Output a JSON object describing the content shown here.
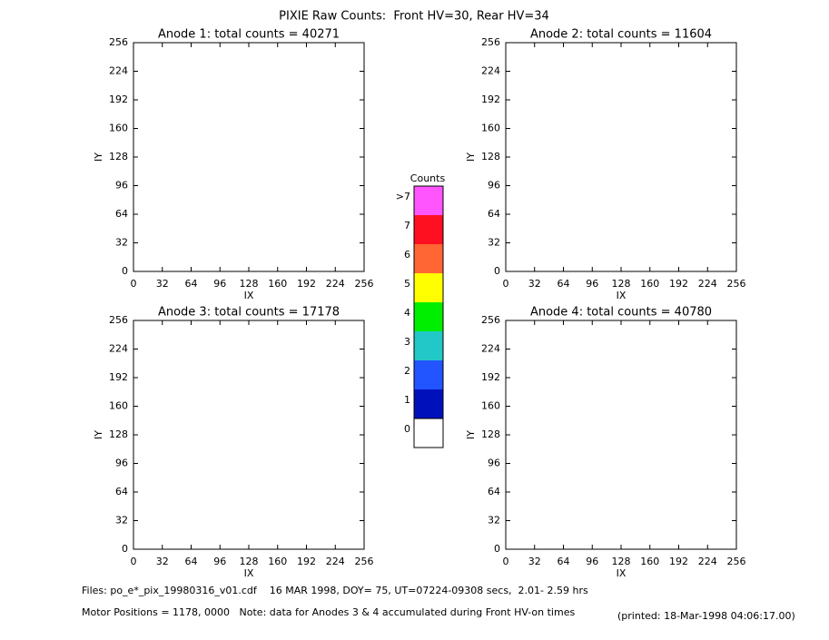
{
  "title": "PIXIE Raw Counts:  Front HV=30, Rear HV=34",
  "chart_data": [
    {
      "type": "heatmap",
      "title": "Anode 1: total counts = 40271",
      "x_label": "IX",
      "y_label": "IY",
      "xlim": [
        0,
        256
      ],
      "ylim": [
        0,
        256
      ],
      "xticks": [
        0,
        32,
        64,
        96,
        128,
        160,
        192,
        224,
        256
      ],
      "yticks": [
        0,
        32,
        64,
        96,
        128,
        160,
        192,
        224,
        256
      ]
    },
    {
      "type": "heatmap",
      "title": "Anode 2: total counts = 11604",
      "x_label": "IX",
      "y_label": "IY",
      "xlim": [
        0,
        256
      ],
      "ylim": [
        0,
        256
      ],
      "xticks": [
        0,
        32,
        64,
        96,
        128,
        160,
        192,
        224,
        256
      ],
      "yticks": [
        0,
        32,
        64,
        96,
        128,
        160,
        192,
        224,
        256
      ]
    },
    {
      "type": "heatmap",
      "title": "Anode 3: total counts = 17178",
      "x_label": "IX",
      "y_label": "IY",
      "xlim": [
        0,
        256
      ],
      "ylim": [
        0,
        256
      ],
      "xticks": [
        0,
        32,
        64,
        96,
        128,
        160,
        192,
        224,
        256
      ],
      "yticks": [
        0,
        32,
        64,
        96,
        128,
        160,
        192,
        224,
        256
      ]
    },
    {
      "type": "heatmap",
      "title": "Anode 4: total counts = 40780",
      "x_label": "IX",
      "y_label": "IY",
      "xlim": [
        0,
        256
      ],
      "ylim": [
        0,
        256
      ],
      "xticks": [
        0,
        32,
        64,
        96,
        128,
        160,
        192,
        224,
        256
      ],
      "yticks": [
        0,
        32,
        64,
        96,
        128,
        160,
        192,
        224,
        256
      ]
    }
  ],
  "colorbar": {
    "title": "Counts",
    "labels": [
      ">7",
      "7",
      "6",
      "5",
      "4",
      "3",
      "2",
      "1",
      "0"
    ],
    "colors": [
      "#ff55ff",
      "#ff1020",
      "#ff6633",
      "#ffff00",
      "#00ee00",
      "#22c8c8",
      "#2255ff",
      "#0011bb",
      "#ffffff"
    ]
  },
  "footer": {
    "files": "Files: po_e*_pix_19980316_v01.cdf    16 MAR 1998, DOY= 75, UT=07224-09308 secs,  2.01- 2.59 hrs",
    "motor": "Motor Positions = 1178, 0000   Note: data for Anodes 3 & 4 accumulated during Front HV-on times",
    "printed": "(printed: 18-Mar-1998 04:06:17.00)"
  }
}
